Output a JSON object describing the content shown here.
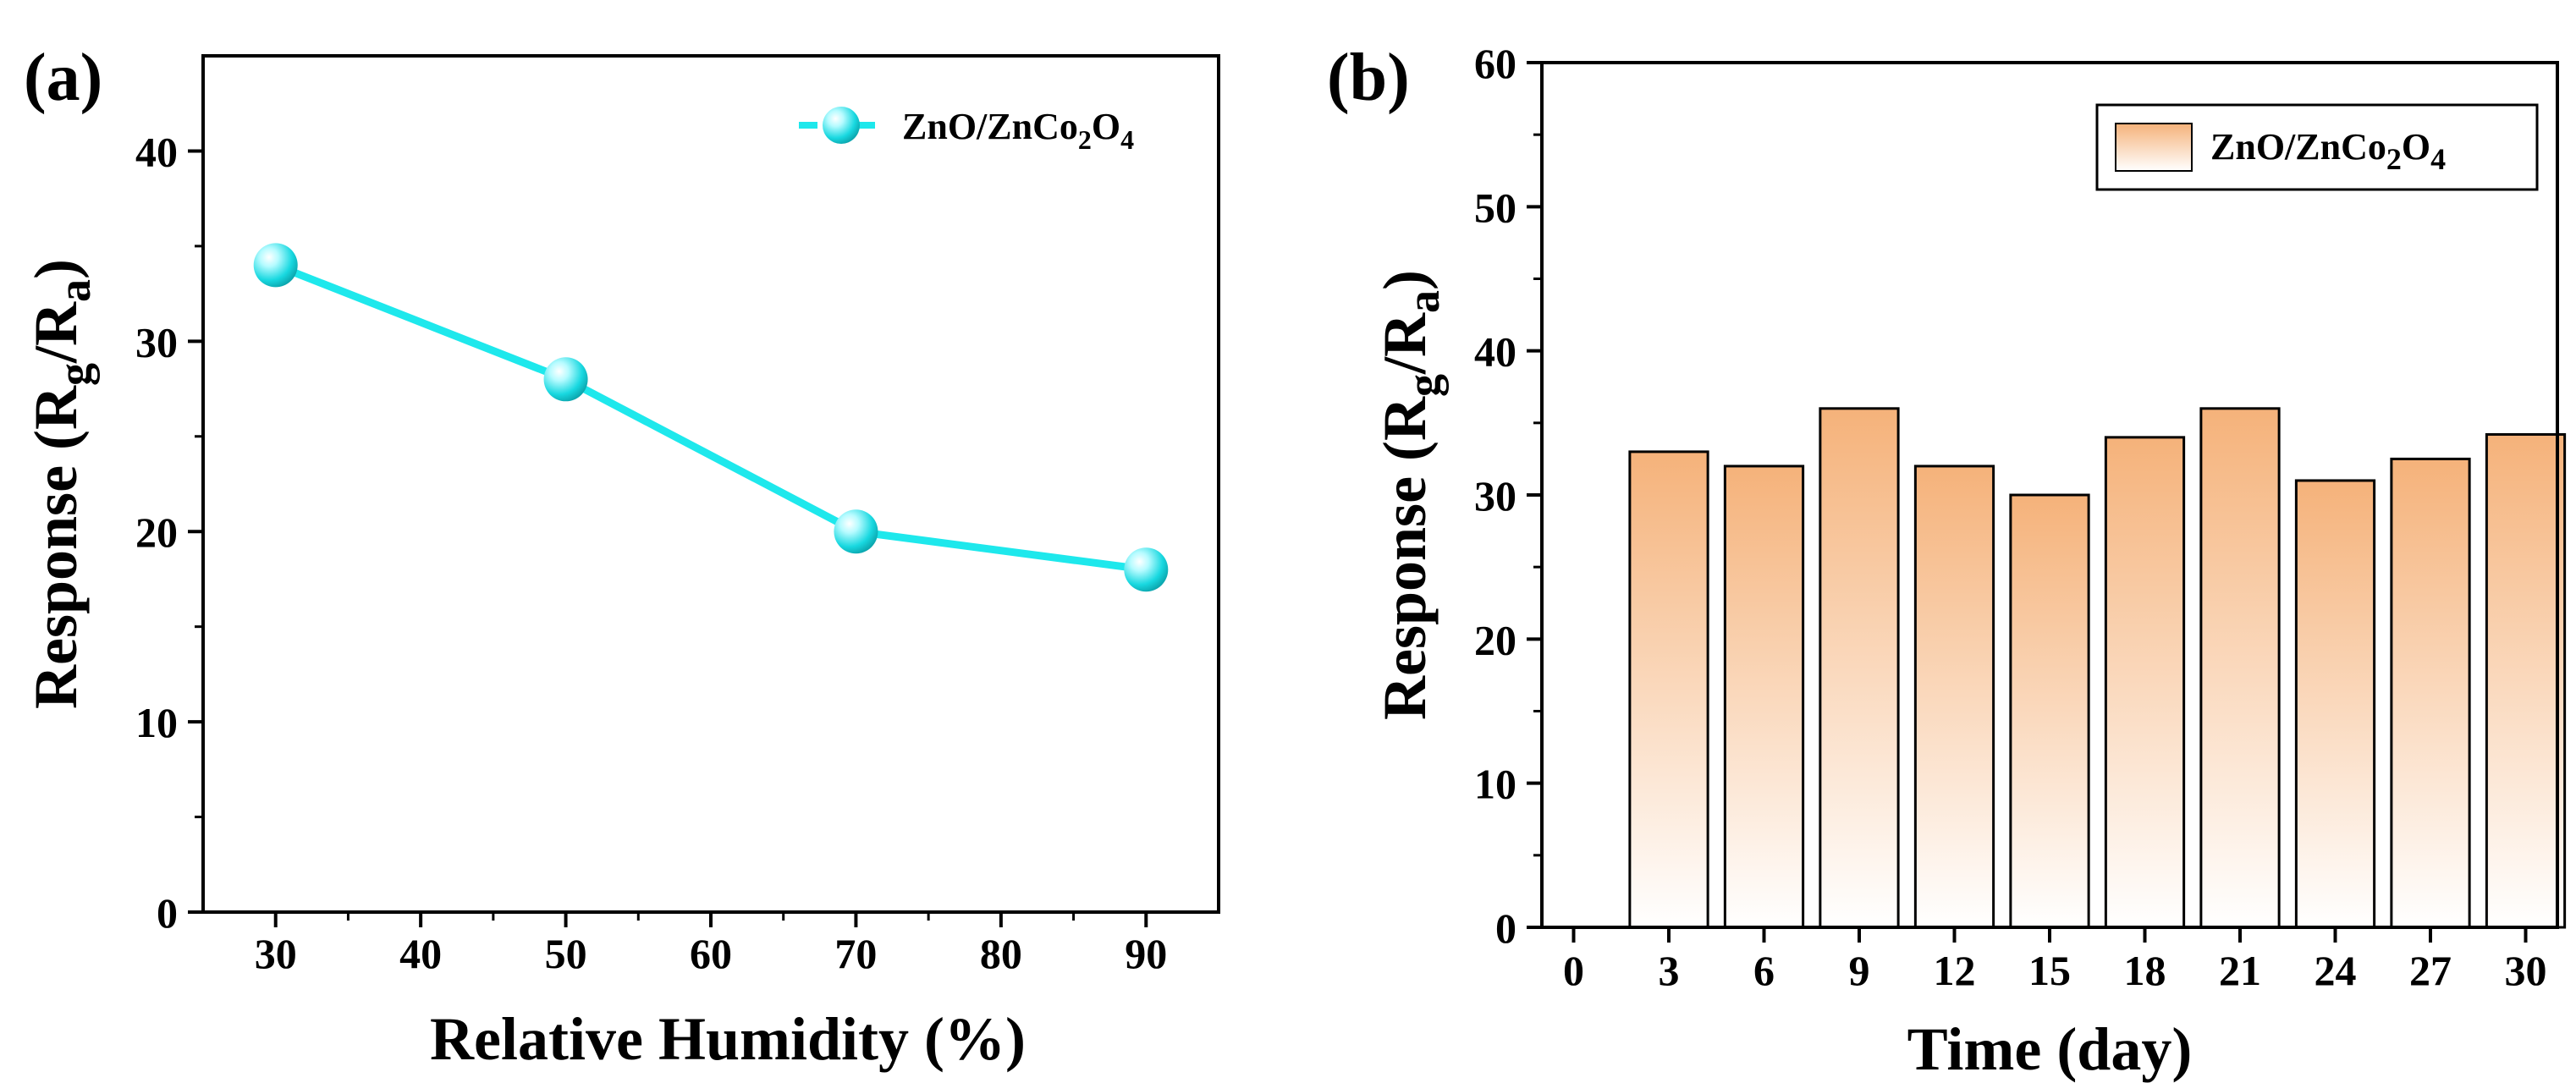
{
  "chart_data": [
    {
      "panel_label": "(a)",
      "type": "line",
      "x": [
        30,
        50,
        70,
        90
      ],
      "series": [
        {
          "name": "ZnO/ZnCo2O4",
          "values": [
            34,
            28,
            20,
            18
          ],
          "color": "#1ee8ec",
          "marker": "sphere"
        }
      ],
      "xlabel": "Relative Humidity (%)",
      "ylabel": {
        "prefix": "Response (R",
        "sub1": "g",
        "mid": "/R",
        "sub2": "a",
        "suffix": ")"
      },
      "xlim": [
        25,
        95
      ],
      "ylim": [
        0,
        45
      ],
      "xticks": [
        30,
        40,
        50,
        60,
        70,
        80,
        90
      ],
      "yticks": [
        0,
        10,
        20,
        30,
        40
      ],
      "legend": {
        "position": "top-right",
        "label": {
          "base1": "ZnO/ZnCo",
          "sub1": "2",
          "base2": "O",
          "sub2": "4"
        }
      }
    },
    {
      "panel_label": "(b)",
      "type": "bar",
      "categories": [
        3,
        6,
        9,
        12,
        15,
        18,
        21,
        24,
        27,
        30
      ],
      "series": [
        {
          "name": "ZnO/ZnCo2O4",
          "values": [
            33,
            32,
            36,
            32,
            30,
            34,
            36,
            31,
            32.5,
            34.2
          ],
          "color": "#f5b27a"
        }
      ],
      "xlabel": "Time (day)",
      "ylabel": {
        "prefix": "Response (R",
        "sub1": "g",
        "mid": "/R",
        "sub2": "a",
        "suffix": ")"
      },
      "xlim": [
        -1,
        31
      ],
      "ylim": [
        0,
        60
      ],
      "xticks": [
        0,
        3,
        6,
        9,
        12,
        15,
        18,
        21,
        24,
        27,
        30
      ],
      "yticks": [
        0,
        10,
        20,
        30,
        40,
        50,
        60
      ],
      "legend": {
        "position": "top-right",
        "label": {
          "base1": "ZnO/ZnCo",
          "sub1": "2",
          "base2": "O",
          "sub2": "4"
        }
      }
    }
  ]
}
